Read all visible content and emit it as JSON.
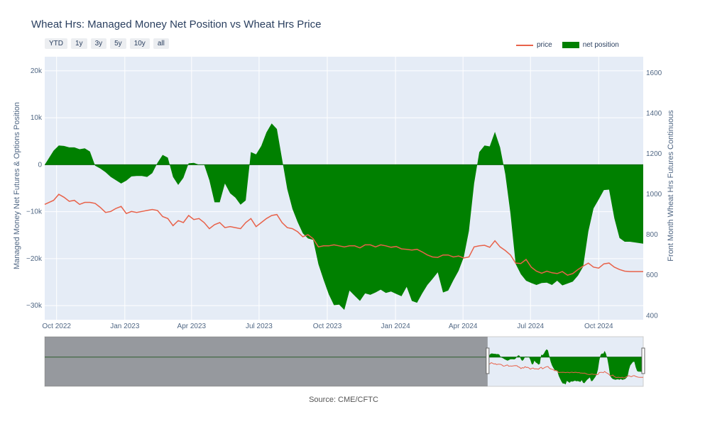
{
  "title": "Wheat Hrs: Managed Money Net Position vs Wheat Hrs Price",
  "range_buttons": [
    "YTD",
    "1y",
    "3y",
    "5y",
    "10y",
    "all"
  ],
  "source": "Source: CME/CFTC",
  "colors": {
    "price": "#e8624a",
    "net_position": "#008000",
    "plot_bg": "#e5ecf6"
  },
  "chart_data": {
    "type": "area",
    "legend_position": "top-right",
    "grid": true,
    "x_range": [
      "2022-09-15",
      "2024-11-30"
    ],
    "x_ticks": [
      {
        "date": "2022-10-01",
        "label": "Oct 2022"
      },
      {
        "date": "2023-01-01",
        "label": "Jan 2023"
      },
      {
        "date": "2023-04-01",
        "label": "Apr 2023"
      },
      {
        "date": "2023-07-01",
        "label": "Jul 2023"
      },
      {
        "date": "2023-10-01",
        "label": "Oct 2023"
      },
      {
        "date": "2024-01-01",
        "label": "Jan 2024"
      },
      {
        "date": "2024-04-01",
        "label": "Apr 2024"
      },
      {
        "date": "2024-07-01",
        "label": "Jul 2024"
      },
      {
        "date": "2024-10-01",
        "label": "Oct 2024"
      }
    ],
    "y_left": {
      "label": "Managed Money Net Futures & Options Position",
      "range": [
        -33000,
        23000
      ],
      "ticks": [
        {
          "v": 20000,
          "label": "20k"
        },
        {
          "v": 10000,
          "label": "10k"
        },
        {
          "v": 0,
          "label": "0"
        },
        {
          "v": -10000,
          "label": "−10k"
        },
        {
          "v": -20000,
          "label": "−20k"
        },
        {
          "v": -30000,
          "label": "−30k"
        }
      ]
    },
    "y_right": {
      "label": "Front Month Wheat Hrs Futures Continuous",
      "range": [
        380,
        1680
      ],
      "ticks": [
        {
          "v": 1600,
          "label": "1600"
        },
        {
          "v": 1400,
          "label": "1400"
        },
        {
          "v": 1200,
          "label": "1200"
        },
        {
          "v": 1000,
          "label": "1000"
        },
        {
          "v": 800,
          "label": "800"
        },
        {
          "v": 600,
          "label": "600"
        },
        {
          "v": 400,
          "label": "400"
        }
      ]
    },
    "series": [
      {
        "name": "net position",
        "axis": "left",
        "points": [
          [
            "2022-09-15",
            0
          ],
          [
            "2022-09-27",
            3000
          ],
          [
            "2022-10-04",
            4100
          ],
          [
            "2022-10-11",
            4000
          ],
          [
            "2022-10-18",
            3700
          ],
          [
            "2022-10-25",
            3700
          ],
          [
            "2022-11-01",
            3300
          ],
          [
            "2022-11-08",
            3500
          ],
          [
            "2022-11-15",
            2800
          ],
          [
            "2022-11-22",
            -200
          ],
          [
            "2022-11-29",
            -800
          ],
          [
            "2022-12-06",
            -1600
          ],
          [
            "2022-12-13",
            -2600
          ],
          [
            "2022-12-20",
            -3300
          ],
          [
            "2022-12-27",
            -4000
          ],
          [
            "2023-01-03",
            -3400
          ],
          [
            "2023-01-10",
            -2500
          ],
          [
            "2023-01-17",
            -2400
          ],
          [
            "2023-01-24",
            -2400
          ],
          [
            "2023-01-31",
            -2600
          ],
          [
            "2023-02-07",
            -1800
          ],
          [
            "2023-02-14",
            400
          ],
          [
            "2023-02-21",
            2100
          ],
          [
            "2023-02-28",
            1500
          ],
          [
            "2023-03-07",
            -2600
          ],
          [
            "2023-03-14",
            -4300
          ],
          [
            "2023-03-21",
            -2800
          ],
          [
            "2023-03-28",
            300
          ],
          [
            "2023-04-04",
            400
          ],
          [
            "2023-04-11",
            0
          ],
          [
            "2023-04-18",
            0
          ],
          [
            "2023-04-25",
            -3300
          ],
          [
            "2023-05-02",
            -8000
          ],
          [
            "2023-05-09",
            -8000
          ],
          [
            "2023-05-16",
            -4000
          ],
          [
            "2023-05-23",
            -6100
          ],
          [
            "2023-05-30",
            -7000
          ],
          [
            "2023-06-06",
            -8500
          ],
          [
            "2023-06-13",
            -7600
          ],
          [
            "2023-06-20",
            2700
          ],
          [
            "2023-06-27",
            2200
          ],
          [
            "2023-07-04",
            4000
          ],
          [
            "2023-07-11",
            6900
          ],
          [
            "2023-07-18",
            8800
          ],
          [
            "2023-07-25",
            7600
          ],
          [
            "2023-08-01",
            1200
          ],
          [
            "2023-08-08",
            -5200
          ],
          [
            "2023-08-15",
            -9400
          ],
          [
            "2023-08-22",
            -12200
          ],
          [
            "2023-08-29",
            -14600
          ],
          [
            "2023-09-05",
            -15700
          ],
          [
            "2023-09-12",
            -16000
          ],
          [
            "2023-09-19",
            -21200
          ],
          [
            "2023-09-26",
            -24500
          ],
          [
            "2023-10-03",
            -27600
          ],
          [
            "2023-10-10",
            -29900
          ],
          [
            "2023-10-17",
            -29800
          ],
          [
            "2023-10-24",
            -30900
          ],
          [
            "2023-10-31",
            -26800
          ],
          [
            "2023-11-07",
            -27900
          ],
          [
            "2023-11-14",
            -29000
          ],
          [
            "2023-11-21",
            -27400
          ],
          [
            "2023-11-28",
            -27700
          ],
          [
            "2023-12-05",
            -27200
          ],
          [
            "2023-12-12",
            -26600
          ],
          [
            "2023-12-19",
            -27300
          ],
          [
            "2023-12-26",
            -27000
          ],
          [
            "2024-01-02",
            -27500
          ],
          [
            "2024-01-09",
            -28000
          ],
          [
            "2024-01-16",
            -26000
          ],
          [
            "2024-01-23",
            -29000
          ],
          [
            "2024-01-30",
            -29400
          ],
          [
            "2024-02-06",
            -27400
          ],
          [
            "2024-02-13",
            -25600
          ],
          [
            "2024-02-20",
            -24300
          ],
          [
            "2024-02-27",
            -22900
          ],
          [
            "2024-03-05",
            -27200
          ],
          [
            "2024-03-12",
            -26800
          ],
          [
            "2024-03-19",
            -24600
          ],
          [
            "2024-03-26",
            -22600
          ],
          [
            "2024-04-02",
            -19700
          ],
          [
            "2024-04-09",
            -14100
          ],
          [
            "2024-04-16",
            -4000
          ],
          [
            "2024-04-23",
            2700
          ],
          [
            "2024-04-30",
            4100
          ],
          [
            "2024-05-07",
            3900
          ],
          [
            "2024-05-14",
            7000
          ],
          [
            "2024-05-21",
            3700
          ],
          [
            "2024-05-28",
            -2000
          ],
          [
            "2024-06-04",
            -10400
          ],
          [
            "2024-06-11",
            -21100
          ],
          [
            "2024-06-18",
            -23300
          ],
          [
            "2024-06-25",
            -24700
          ],
          [
            "2024-07-02",
            -25200
          ],
          [
            "2024-07-09",
            -25600
          ],
          [
            "2024-07-16",
            -25200
          ],
          [
            "2024-07-23",
            -25100
          ],
          [
            "2024-07-30",
            -25600
          ],
          [
            "2024-08-06",
            -24700
          ],
          [
            "2024-08-13",
            -25700
          ],
          [
            "2024-08-20",
            -25300
          ],
          [
            "2024-08-27",
            -24900
          ],
          [
            "2024-09-03",
            -23600
          ],
          [
            "2024-09-10",
            -21700
          ],
          [
            "2024-09-17",
            -14200
          ],
          [
            "2024-09-24",
            -9300
          ],
          [
            "2024-10-01",
            -7400
          ],
          [
            "2024-10-08",
            -5400
          ],
          [
            "2024-10-15",
            -5300
          ],
          [
            "2024-10-22",
            -11400
          ],
          [
            "2024-10-29",
            -15600
          ],
          [
            "2024-11-05",
            -16400
          ],
          [
            "2024-11-12",
            -16400
          ],
          [
            "2024-11-30",
            -16800
          ]
        ]
      },
      {
        "name": "price",
        "axis": "right",
        "points": [
          [
            "2022-09-15",
            950
          ],
          [
            "2022-09-27",
            970
          ],
          [
            "2022-10-04",
            1000
          ],
          [
            "2022-10-11",
            985
          ],
          [
            "2022-10-18",
            965
          ],
          [
            "2022-10-25",
            970
          ],
          [
            "2022-11-01",
            950
          ],
          [
            "2022-11-08",
            960
          ],
          [
            "2022-11-15",
            960
          ],
          [
            "2022-11-22",
            955
          ],
          [
            "2022-11-29",
            935
          ],
          [
            "2022-12-06",
            910
          ],
          [
            "2022-12-13",
            915
          ],
          [
            "2022-12-20",
            930
          ],
          [
            "2022-12-27",
            940
          ],
          [
            "2023-01-03",
            905
          ],
          [
            "2023-01-10",
            915
          ],
          [
            "2023-01-17",
            910
          ],
          [
            "2023-01-24",
            915
          ],
          [
            "2023-01-31",
            920
          ],
          [
            "2023-02-07",
            925
          ],
          [
            "2023-02-14",
            920
          ],
          [
            "2023-02-21",
            890
          ],
          [
            "2023-02-28",
            880
          ],
          [
            "2023-03-07",
            845
          ],
          [
            "2023-03-14",
            870
          ],
          [
            "2023-03-21",
            860
          ],
          [
            "2023-03-28",
            895
          ],
          [
            "2023-04-04",
            875
          ],
          [
            "2023-04-11",
            880
          ],
          [
            "2023-04-18",
            860
          ],
          [
            "2023-04-25",
            830
          ],
          [
            "2023-05-02",
            850
          ],
          [
            "2023-05-09",
            860
          ],
          [
            "2023-05-16",
            835
          ],
          [
            "2023-05-23",
            840
          ],
          [
            "2023-05-30",
            835
          ],
          [
            "2023-06-06",
            830
          ],
          [
            "2023-06-13",
            860
          ],
          [
            "2023-06-20",
            880
          ],
          [
            "2023-06-27",
            840
          ],
          [
            "2023-07-04",
            860
          ],
          [
            "2023-07-11",
            880
          ],
          [
            "2023-07-18",
            895
          ],
          [
            "2023-07-25",
            900
          ],
          [
            "2023-08-01",
            860
          ],
          [
            "2023-08-08",
            835
          ],
          [
            "2023-08-15",
            830
          ],
          [
            "2023-08-22",
            815
          ],
          [
            "2023-08-29",
            790
          ],
          [
            "2023-09-05",
            800
          ],
          [
            "2023-09-12",
            780
          ],
          [
            "2023-09-19",
            740
          ],
          [
            "2023-09-26",
            745
          ],
          [
            "2023-10-03",
            745
          ],
          [
            "2023-10-10",
            750
          ],
          [
            "2023-10-17",
            745
          ],
          [
            "2023-10-24",
            740
          ],
          [
            "2023-10-31",
            745
          ],
          [
            "2023-11-07",
            745
          ],
          [
            "2023-11-14",
            735
          ],
          [
            "2023-11-21",
            750
          ],
          [
            "2023-11-28",
            750
          ],
          [
            "2023-12-05",
            740
          ],
          [
            "2023-12-12",
            750
          ],
          [
            "2023-12-19",
            745
          ],
          [
            "2023-12-26",
            738
          ],
          [
            "2024-01-02",
            742
          ],
          [
            "2024-01-09",
            730
          ],
          [
            "2024-01-16",
            728
          ],
          [
            "2024-01-23",
            724
          ],
          [
            "2024-01-30",
            728
          ],
          [
            "2024-02-06",
            715
          ],
          [
            "2024-02-13",
            700
          ],
          [
            "2024-02-20",
            690
          ],
          [
            "2024-02-27",
            688
          ],
          [
            "2024-03-05",
            700
          ],
          [
            "2024-03-12",
            700
          ],
          [
            "2024-03-19",
            690
          ],
          [
            "2024-03-26",
            695
          ],
          [
            "2024-04-02",
            685
          ],
          [
            "2024-04-09",
            690
          ],
          [
            "2024-04-16",
            740
          ],
          [
            "2024-04-23",
            745
          ],
          [
            "2024-04-30",
            748
          ],
          [
            "2024-05-07",
            738
          ],
          [
            "2024-05-14",
            770
          ],
          [
            "2024-05-21",
            740
          ],
          [
            "2024-05-28",
            722
          ],
          [
            "2024-06-04",
            700
          ],
          [
            "2024-06-11",
            660
          ],
          [
            "2024-06-18",
            658
          ],
          [
            "2024-06-25",
            678
          ],
          [
            "2024-07-02",
            640
          ],
          [
            "2024-07-09",
            620
          ],
          [
            "2024-07-16",
            610
          ],
          [
            "2024-07-23",
            620
          ],
          [
            "2024-07-30",
            612
          ],
          [
            "2024-08-06",
            608
          ],
          [
            "2024-08-13",
            618
          ],
          [
            "2024-08-20",
            600
          ],
          [
            "2024-08-27",
            608
          ],
          [
            "2024-09-03",
            628
          ],
          [
            "2024-09-10",
            645
          ],
          [
            "2024-09-17",
            660
          ],
          [
            "2024-09-24",
            640
          ],
          [
            "2024-10-01",
            635
          ],
          [
            "2024-10-08",
            656
          ],
          [
            "2024-10-15",
            660
          ],
          [
            "2024-10-22",
            640
          ],
          [
            "2024-10-29",
            628
          ],
          [
            "2024-11-05",
            620
          ],
          [
            "2024-11-12",
            618
          ],
          [
            "2024-11-30",
            618
          ]
        ]
      }
    ]
  }
}
